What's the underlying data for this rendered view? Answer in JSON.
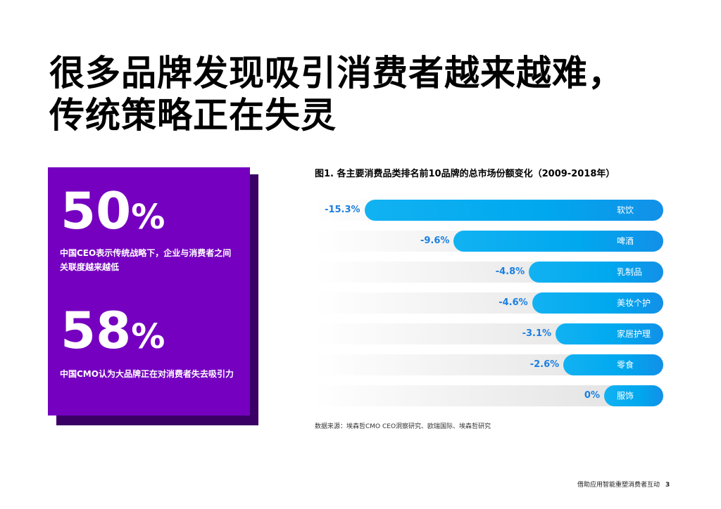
{
  "title": {
    "line1": "很多品牌发现吸引消费者越来越难，",
    "line2": "传统策略正在失灵"
  },
  "stats": [
    {
      "number": "50",
      "unit": "%",
      "description": "中国CEO表示传统战略下，企业与消费者之间关联度越来越低"
    },
    {
      "number": "58",
      "unit": "%",
      "description": "中国CMO认为大品牌正在对消费者失去吸引力"
    }
  ],
  "chart_data": {
    "type": "bar",
    "title": "图1. 各主要消费品类排名前10品牌的总市场份额变化（2009-2018年）",
    "categories": [
      "软饮",
      "啤酒",
      "乳制品",
      "美妆个护",
      "家居护理",
      "零食",
      "服饰"
    ],
    "values": [
      -15.3,
      -9.6,
      -4.8,
      -4.6,
      -3.1,
      -2.6,
      0
    ],
    "labels": [
      "-15.3%",
      "-9.6%",
      "-4.8%",
      "-4.6%",
      "-3.1%",
      "-2.6%",
      "0%"
    ],
    "unit": "%",
    "xlim": [
      -16,
      0
    ]
  },
  "source": "数据来源：埃森哲CMO CEO洞察研究、欧瑞国际、埃森哲研究",
  "footer": {
    "text": "借助应用智能重塑消费者互动",
    "page": "3"
  },
  "colors": {
    "purple": "#7500c0",
    "bar_blue": "#00a8ee",
    "label_blue": "#1b7fe0"
  }
}
